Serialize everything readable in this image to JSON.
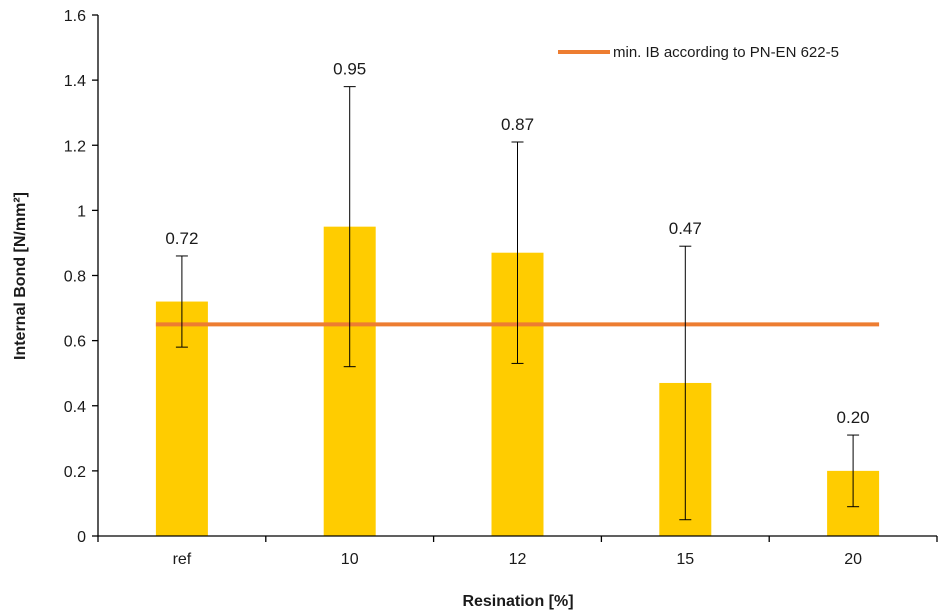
{
  "chart_data": {
    "type": "bar",
    "title": "",
    "xlabel": "Resination [%]",
    "ylabel": "Internal Bond [N/mm²]",
    "categories": [
      "ref",
      "10",
      "12",
      "15",
      "20"
    ],
    "values": [
      0.72,
      0.95,
      0.87,
      0.47,
      0.2
    ],
    "value_labels": [
      "0.72",
      "0.95",
      "0.87",
      "0.47",
      "0.20"
    ],
    "error_low": [
      0.58,
      0.52,
      0.53,
      0.05,
      0.09
    ],
    "error_high": [
      0.86,
      1.38,
      1.21,
      0.89,
      0.31
    ],
    "ylim": [
      0,
      1.6
    ],
    "yticks": [
      0,
      0.2,
      0.4,
      0.6,
      0.8,
      1,
      1.2,
      1.4,
      1.6
    ],
    "ytick_labels": [
      "0",
      "0.2",
      "0.4",
      "0.6",
      "0.8",
      "1",
      "1.2",
      "1.4",
      "1.6"
    ],
    "bar_color": "#FFCC00",
    "reference_line": {
      "label": "min. IB according to PN-EN 622-5",
      "value": 0.65,
      "color": "#ED7D31"
    },
    "legend_position": "top-right",
    "grid": false
  }
}
